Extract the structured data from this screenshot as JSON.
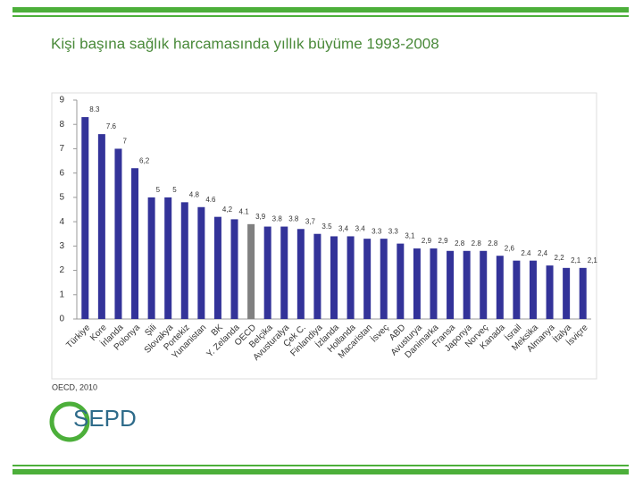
{
  "chart_data": {
    "type": "bar",
    "title": "Kişi başına sağlık harcamasında yıllık büyüme 1993-2008",
    "source": "OECD, 2010",
    "logo": "SEPD",
    "categories": [
      "Türkiye",
      "Kore",
      "İrlanda",
      "Polonya",
      "Şili",
      "Slovakya",
      "Portekiz",
      "Yunanistan",
      "BK",
      "Y. Zelanda",
      "OECD",
      "Belçika",
      "Avusturalya",
      "Çek C.",
      "Finlandiya",
      "İzlanda",
      "Hollanda",
      "Macaristan",
      "İsveç",
      "ABD",
      "Avusturya",
      "Danimarka",
      "Fransa",
      "Japonya",
      "Norveç",
      "Kanada",
      "İsrail",
      "Meksika",
      "Almanya",
      "İtalya",
      "İsviçre"
    ],
    "values": [
      8.3,
      7.6,
      7,
      6.2,
      5,
      5,
      4.8,
      4.6,
      4.2,
      4.1,
      3.9,
      3.8,
      3.8,
      3.7,
      3.5,
      3.4,
      3.4,
      3.3,
      3.3,
      3.1,
      2.9,
      2.9,
      2.8,
      2.8,
      2.8,
      2.6,
      2.4,
      2.4,
      2.2,
      2.1,
      2.1
    ],
    "value_labels": [
      "8.3",
      "7.6",
      "7",
      "6,2",
      "5",
      "5",
      "4.8",
      "4.6",
      "4,2",
      "4.1",
      "3,9",
      "3.8",
      "3.8",
      "3,7",
      "3.5",
      "3,4",
      "3.4",
      "3.3",
      "3.3",
      "3,1",
      "2,9",
      "2,9",
      "2.8",
      "2.8",
      "2.8",
      "2,6",
      "2.4",
      "2,4",
      "2,2",
      "2,1",
      "2,1"
    ],
    "colors": [
      "#333399",
      "#333399",
      "#333399",
      "#333399",
      "#333399",
      "#333399",
      "#333399",
      "#333399",
      "#333399",
      "#333399",
      "#808080",
      "#333399",
      "#333399",
      "#333399",
      "#333399",
      "#333399",
      "#333399",
      "#333399",
      "#333399",
      "#333399",
      "#333399",
      "#333399",
      "#333399",
      "#333399",
      "#333399",
      "#333399",
      "#333399",
      "#333399",
      "#333399",
      "#333399",
      "#333399"
    ],
    "ylim": [
      0,
      9
    ],
    "yticks": [
      0,
      1,
      2,
      3,
      4,
      5,
      6,
      7,
      8,
      9
    ],
    "grid": false
  }
}
